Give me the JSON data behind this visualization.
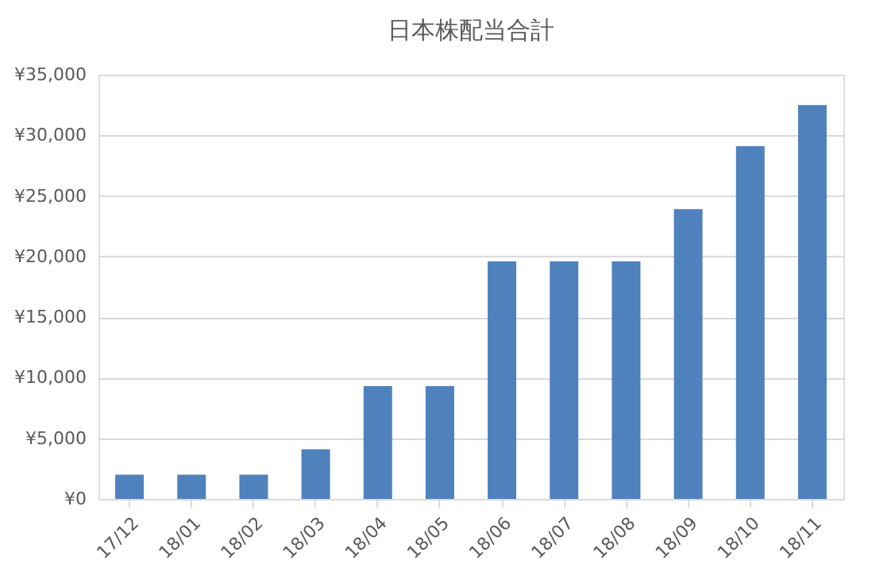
{
  "chart_data": {
    "type": "bar",
    "title": "日本株配当合計",
    "categories": [
      "17/12",
      "18/01",
      "18/02",
      "18/03",
      "18/04",
      "18/05",
      "18/06",
      "18/07",
      "18/08",
      "18/09",
      "18/10",
      "18/11"
    ],
    "values": [
      2000,
      2000,
      2000,
      4100,
      9300,
      9300,
      19600,
      19600,
      19600,
      23900,
      29100,
      32500
    ],
    "color": "#4f81bd",
    "ylim": [
      0,
      35000
    ],
    "yticks": [
      {
        "value": 0,
        "label": "¥0"
      },
      {
        "value": 5000,
        "label": "¥5,000"
      },
      {
        "value": 10000,
        "label": "¥10,000"
      },
      {
        "value": 15000,
        "label": "¥15,000"
      },
      {
        "value": 20000,
        "label": "¥20,000"
      },
      {
        "value": 25000,
        "label": "¥25,000"
      },
      {
        "value": 30000,
        "label": "¥30,000"
      },
      {
        "value": 35000,
        "label": "¥35,000"
      }
    ],
    "grid": "y"
  }
}
